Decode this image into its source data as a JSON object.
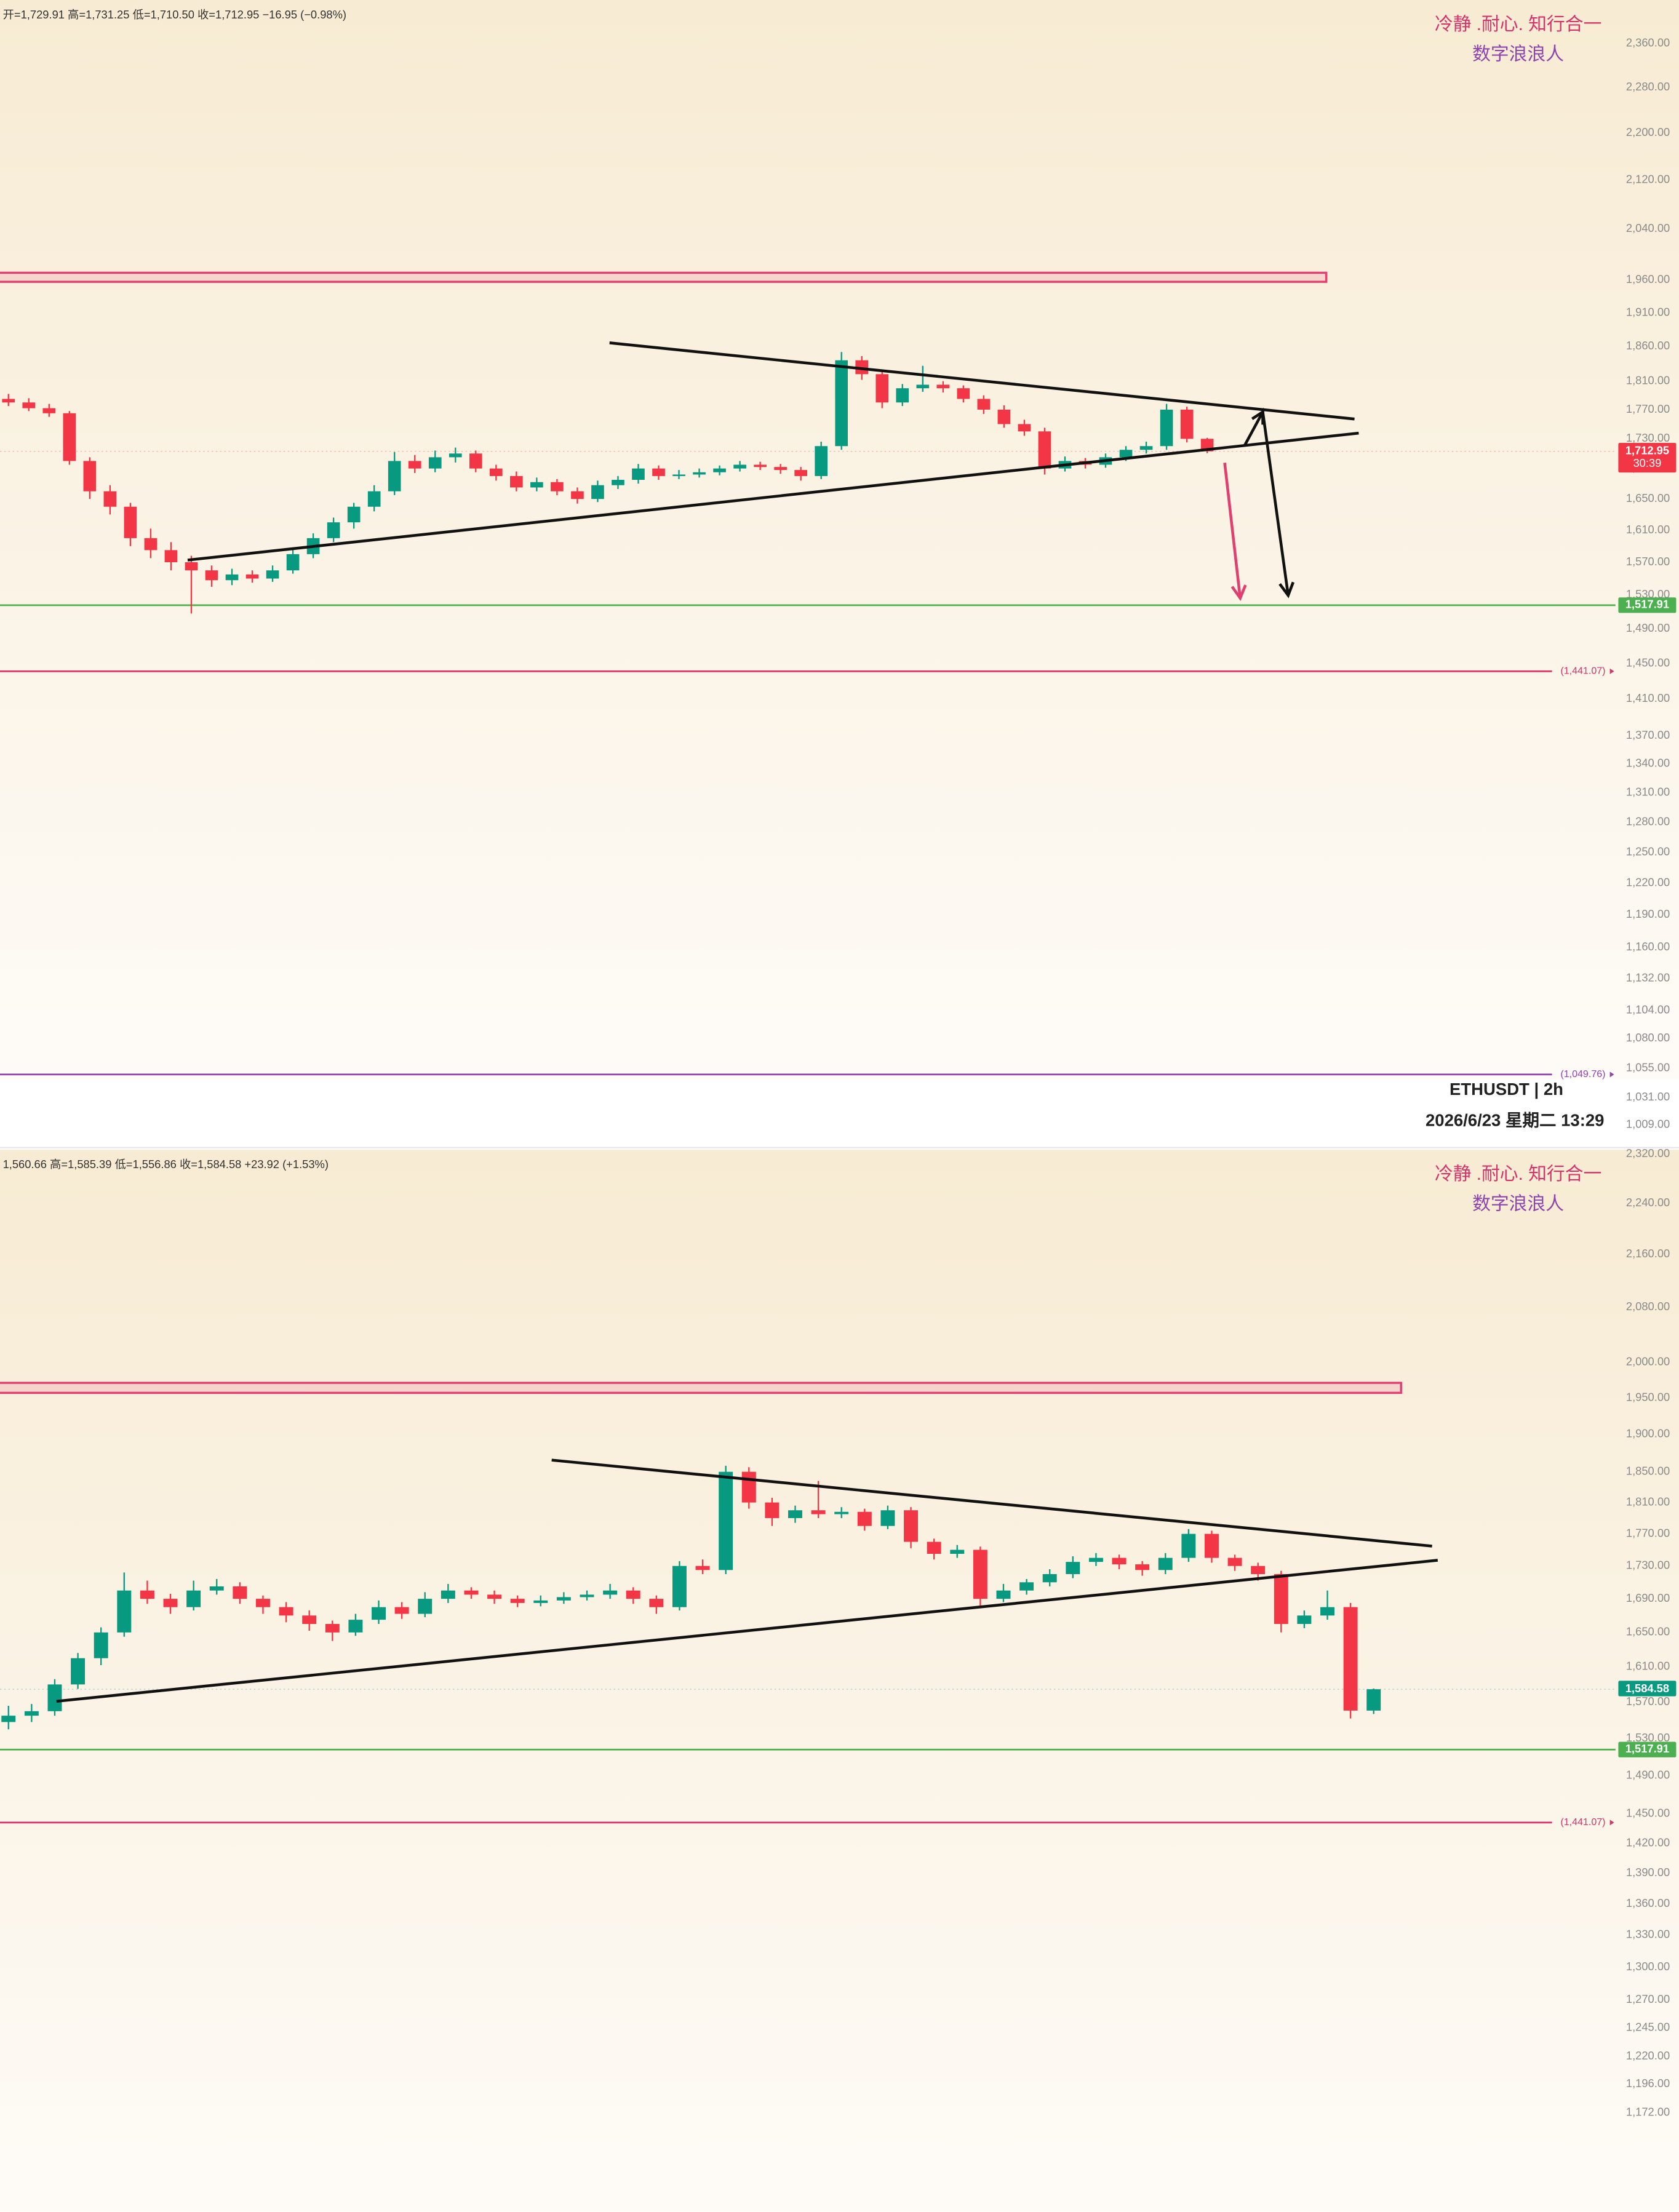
{
  "chart_data": [
    {
      "type": "candlestick",
      "header": "开=1,729.91 高=1,731.25 低=1,710.50 收=1,712.95 −16.95 (−0.98%)",
      "watermark": [
        "冷静 .耐心. 知行合一",
        "数字浪浪人"
      ],
      "symbol": "ETHUSDT | 2h",
      "date": "2026/6/23 星期二 13:29",
      "log_scale": true,
      "grid": false,
      "ylim": [
        995,
        2442
      ],
      "yticks": [
        {
          "value": 2360,
          "label": "2,360.00"
        },
        {
          "value": 2280,
          "label": "2,280.00"
        },
        {
          "value": 2200,
          "label": "2,200.00"
        },
        {
          "value": 2120,
          "label": "2,120.00"
        },
        {
          "value": 2040,
          "label": "2,040.00"
        },
        {
          "value": 1960,
          "label": "1,960.00"
        },
        {
          "value": 1910,
          "label": "1,910.00"
        },
        {
          "value": 1860,
          "label": "1,860.00"
        },
        {
          "value": 1810,
          "label": "1,810.00"
        },
        {
          "value": 1770,
          "label": "1,770.00"
        },
        {
          "value": 1730,
          "label": "1,730.00"
        },
        {
          "value": 1690,
          "label": "1,690.00"
        },
        {
          "value": 1650,
          "label": "1,650.00"
        },
        {
          "value": 1610,
          "label": "1,610.00"
        },
        {
          "value": 1570,
          "label": "1,570.00"
        },
        {
          "value": 1530,
          "label": "1,530.00"
        },
        {
          "value": 1490,
          "label": "1,490.00"
        },
        {
          "value": 1450,
          "label": "1,450.00"
        },
        {
          "value": 1410,
          "label": "1,410.00"
        },
        {
          "value": 1370,
          "label": "1,370.00"
        },
        {
          "value": 1340,
          "label": "1,340.00"
        },
        {
          "value": 1310,
          "label": "1,310.00"
        },
        {
          "value": 1280,
          "label": "1,280.00"
        },
        {
          "value": 1250,
          "label": "1,250.00"
        },
        {
          "value": 1220,
          "label": "1,220.00"
        },
        {
          "value": 1190,
          "label": "1,190.00"
        },
        {
          "value": 1160,
          "label": "1,160.00"
        },
        {
          "value": 1132,
          "label": "1,132.00"
        },
        {
          "value": 1104,
          "label": "1,104.00"
        },
        {
          "value": 1080,
          "label": "1,080.00"
        },
        {
          "value": 1055,
          "label": "1,055.00"
        },
        {
          "value": 1031,
          "label": "1,031.00"
        },
        {
          "value": 1009,
          "label": "1,009.00"
        }
      ],
      "up_color": "#089981",
      "down_color": "#f23645",
      "ohlc": [
        [
          1785,
          1792,
          1775,
          1780
        ],
        [
          1780,
          1786,
          1768,
          1772
        ],
        [
          1772,
          1778,
          1760,
          1765
        ],
        [
          1765,
          1768,
          1695,
          1700
        ],
        [
          1700,
          1705,
          1650,
          1660
        ],
        [
          1660,
          1668,
          1630,
          1640
        ],
        [
          1640,
          1645,
          1590,
          1600
        ],
        [
          1600,
          1612,
          1575,
          1585
        ],
        [
          1585,
          1595,
          1560,
          1570
        ],
        [
          1570,
          1578,
          1508,
          1560
        ],
        [
          1560,
          1566,
          1540,
          1548
        ],
        [
          1548,
          1562,
          1542,
          1555
        ],
        [
          1555,
          1560,
          1545,
          1550
        ],
        [
          1550,
          1566,
          1546,
          1560
        ],
        [
          1560,
          1586,
          1556,
          1580
        ],
        [
          1580,
          1606,
          1575,
          1600
        ],
        [
          1600,
          1626,
          1595,
          1620
        ],
        [
          1620,
          1645,
          1612,
          1640
        ],
        [
          1640,
          1668,
          1634,
          1660
        ],
        [
          1660,
          1712,
          1655,
          1700
        ],
        [
          1700,
          1708,
          1684,
          1690
        ],
        [
          1690,
          1714,
          1685,
          1705
        ],
        [
          1705,
          1718,
          1698,
          1710
        ],
        [
          1710,
          1714,
          1685,
          1690
        ],
        [
          1690,
          1695,
          1674,
          1680
        ],
        [
          1680,
          1686,
          1660,
          1665
        ],
        [
          1665,
          1678,
          1660,
          1672
        ],
        [
          1672,
          1676,
          1655,
          1660
        ],
        [
          1660,
          1665,
          1644,
          1650
        ],
        [
          1650,
          1674,
          1646,
          1668
        ],
        [
          1668,
          1680,
          1663,
          1675
        ],
        [
          1675,
          1696,
          1670,
          1690
        ],
        [
          1690,
          1694,
          1675,
          1680
        ],
        [
          1680,
          1688,
          1676,
          1682
        ],
        [
          1682,
          1690,
          1678,
          1685
        ],
        [
          1685,
          1694,
          1681,
          1690
        ],
        [
          1690,
          1700,
          1686,
          1695
        ],
        [
          1695,
          1699,
          1688,
          1692
        ],
        [
          1692,
          1696,
          1683,
          1688
        ],
        [
          1688,
          1692,
          1674,
          1680
        ],
        [
          1680,
          1726,
          1676,
          1720
        ],
        [
          1720,
          1852,
          1715,
          1840
        ],
        [
          1840,
          1846,
          1812,
          1820
        ],
        [
          1820,
          1825,
          1772,
          1780
        ],
        [
          1780,
          1806,
          1775,
          1800
        ],
        [
          1800,
          1832,
          1795,
          1805
        ],
        [
          1805,
          1810,
          1794,
          1800
        ],
        [
          1800,
          1804,
          1780,
          1785
        ],
        [
          1785,
          1790,
          1764,
          1770
        ],
        [
          1770,
          1776,
          1745,
          1750
        ],
        [
          1750,
          1756,
          1734,
          1740
        ],
        [
          1740,
          1745,
          1682,
          1690
        ],
        [
          1690,
          1706,
          1686,
          1700
        ],
        [
          1700,
          1704,
          1690,
          1695
        ],
        [
          1695,
          1710,
          1691,
          1705
        ],
        [
          1705,
          1720,
          1700,
          1715
        ],
        [
          1715,
          1726,
          1710,
          1720
        ],
        [
          1720,
          1778,
          1715,
          1770
        ],
        [
          1770,
          1774,
          1725,
          1729.91
        ],
        [
          1729.91,
          1731.25,
          1710.5,
          1712.95
        ]
      ],
      "zone": {
        "from": 1957,
        "to": 1971,
        "color": "#e0406f"
      },
      "levels": [
        {
          "value": 1517.91,
          "label": "1,517.91",
          "color": "#4caf50",
          "style": "badge"
        },
        {
          "value": 1441.07,
          "label": "(1,441.07)",
          "color": "#d6336c",
          "style": "tag"
        },
        {
          "value": 1049.76,
          "label": "(1,049.76)",
          "color": "#8e44ad",
          "style": "tag"
        }
      ],
      "last_price": {
        "value": 1712.95,
        "label": "1,712.95",
        "countdown": "30:39",
        "color": "#f23645"
      }
    },
    {
      "type": "candlestick",
      "header": "1,560.66 高=1,585.39 低=1,556.86 收=1,584.58 +23.92 (+1.53%)",
      "watermark": [
        "冷静 .耐心. 知行合一",
        "数字浪浪人"
      ],
      "log_scale": true,
      "grid": false,
      "ylim": [
        1092,
        2327
      ],
      "yticks": [
        {
          "value": 2320,
          "label": "2,320.00"
        },
        {
          "value": 2240,
          "label": "2,240.00"
        },
        {
          "value": 2160,
          "label": "2,160.00"
        },
        {
          "value": 2080,
          "label": "2,080.00"
        },
        {
          "value": 2000,
          "label": "2,000.00"
        },
        {
          "value": 1950,
          "label": "1,950.00"
        },
        {
          "value": 1900,
          "label": "1,900.00"
        },
        {
          "value": 1850,
          "label": "1,850.00"
        },
        {
          "value": 1810,
          "label": "1,810.00"
        },
        {
          "value": 1770,
          "label": "1,770.00"
        },
        {
          "value": 1730,
          "label": "1,730.00"
        },
        {
          "value": 1690,
          "label": "1,690.00"
        },
        {
          "value": 1650,
          "label": "1,650.00"
        },
        {
          "value": 1610,
          "label": "1,610.00"
        },
        {
          "value": 1570,
          "label": "1,570.00"
        },
        {
          "value": 1530,
          "label": "1,530.00"
        },
        {
          "value": 1490,
          "label": "1,490.00"
        },
        {
          "value": 1450,
          "label": "1,450.00"
        },
        {
          "value": 1420,
          "label": "1,420.00"
        },
        {
          "value": 1390,
          "label": "1,390.00"
        },
        {
          "value": 1360,
          "label": "1,360.00"
        },
        {
          "value": 1330,
          "label": "1,330.00"
        },
        {
          "value": 1300,
          "label": "1,300.00"
        },
        {
          "value": 1270,
          "label": "1,270.00"
        },
        {
          "value": 1245,
          "label": "1,245.00"
        },
        {
          "value": 1220,
          "label": "1,220.00"
        },
        {
          "value": 1196,
          "label": "1,196.00"
        },
        {
          "value": 1172,
          "label": "1,172.00"
        }
      ],
      "up_color": "#089981",
      "down_color": "#f23645",
      "ohlc": [
        [
          1548,
          1566,
          1540,
          1555
        ],
        [
          1555,
          1568,
          1548,
          1560
        ],
        [
          1560,
          1596,
          1555,
          1590
        ],
        [
          1590,
          1626,
          1585,
          1620
        ],
        [
          1620,
          1656,
          1612,
          1650
        ],
        [
          1650,
          1722,
          1645,
          1700
        ],
        [
          1700,
          1712,
          1684,
          1690
        ],
        [
          1690,
          1696,
          1672,
          1680
        ],
        [
          1680,
          1712,
          1676,
          1700
        ],
        [
          1700,
          1714,
          1695,
          1705
        ],
        [
          1705,
          1710,
          1684,
          1690
        ],
        [
          1690,
          1694,
          1672,
          1680
        ],
        [
          1680,
          1686,
          1662,
          1670
        ],
        [
          1670,
          1676,
          1652,
          1660
        ],
        [
          1660,
          1664,
          1640,
          1650
        ],
        [
          1650,
          1672,
          1646,
          1665
        ],
        [
          1665,
          1688,
          1660,
          1680
        ],
        [
          1680,
          1686,
          1666,
          1672
        ],
        [
          1672,
          1698,
          1668,
          1690
        ],
        [
          1690,
          1708,
          1685,
          1700
        ],
        [
          1700,
          1704,
          1690,
          1695
        ],
        [
          1695,
          1700,
          1684,
          1690
        ],
        [
          1690,
          1694,
          1680,
          1685
        ],
        [
          1685,
          1694,
          1681,
          1688
        ],
        [
          1688,
          1698,
          1684,
          1692
        ],
        [
          1692,
          1700,
          1688,
          1695
        ],
        [
          1695,
          1708,
          1690,
          1700
        ],
        [
          1700,
          1704,
          1684,
          1690
        ],
        [
          1690,
          1694,
          1672,
          1680
        ],
        [
          1680,
          1736,
          1676,
          1730
        ],
        [
          1730,
          1738,
          1720,
          1725
        ],
        [
          1725,
          1858,
          1720,
          1850
        ],
        [
          1850,
          1856,
          1802,
          1810
        ],
        [
          1810,
          1816,
          1780,
          1790
        ],
        [
          1790,
          1806,
          1784,
          1800
        ],
        [
          1800,
          1838,
          1790,
          1795
        ],
        [
          1795,
          1804,
          1790,
          1798
        ],
        [
          1798,
          1802,
          1774,
          1780
        ],
        [
          1780,
          1806,
          1776,
          1800
        ],
        [
          1800,
          1804,
          1752,
          1760
        ],
        [
          1760,
          1764,
          1738,
          1745
        ],
        [
          1745,
          1756,
          1740,
          1750
        ],
        [
          1750,
          1754,
          1682,
          1690
        ],
        [
          1690,
          1708,
          1686,
          1700
        ],
        [
          1700,
          1714,
          1695,
          1710
        ],
        [
          1710,
          1726,
          1705,
          1720
        ],
        [
          1720,
          1742,
          1715,
          1735
        ],
        [
          1735,
          1746,
          1730,
          1740
        ],
        [
          1740,
          1744,
          1726,
          1732
        ],
        [
          1732,
          1736,
          1718,
          1725
        ],
        [
          1725,
          1746,
          1720,
          1740
        ],
        [
          1740,
          1776,
          1735,
          1770
        ],
        [
          1770,
          1774,
          1734,
          1740
        ],
        [
          1740,
          1744,
          1724,
          1730
        ],
        [
          1730,
          1734,
          1712,
          1720
        ],
        [
          1720,
          1724,
          1650,
          1660
        ],
        [
          1660,
          1676,
          1655,
          1670
        ],
        [
          1670,
          1700,
          1665,
          1680
        ],
        [
          1680,
          1685,
          1552,
          1560.66
        ],
        [
          1560.66,
          1585.39,
          1556.86,
          1584.58
        ]
      ],
      "zone": {
        "from": 1957,
        "to": 1971,
        "color": "#e0406f"
      },
      "levels": [
        {
          "value": 1517.91,
          "label": "1,517.91",
          "color": "#4caf50",
          "style": "badge"
        },
        {
          "value": 1441.07,
          "label": "(1,441.07)",
          "color": "#d6336c",
          "style": "tag"
        }
      ],
      "last_price": {
        "value": 1584.58,
        "label": "1,584.58",
        "color": "#089981"
      }
    }
  ]
}
